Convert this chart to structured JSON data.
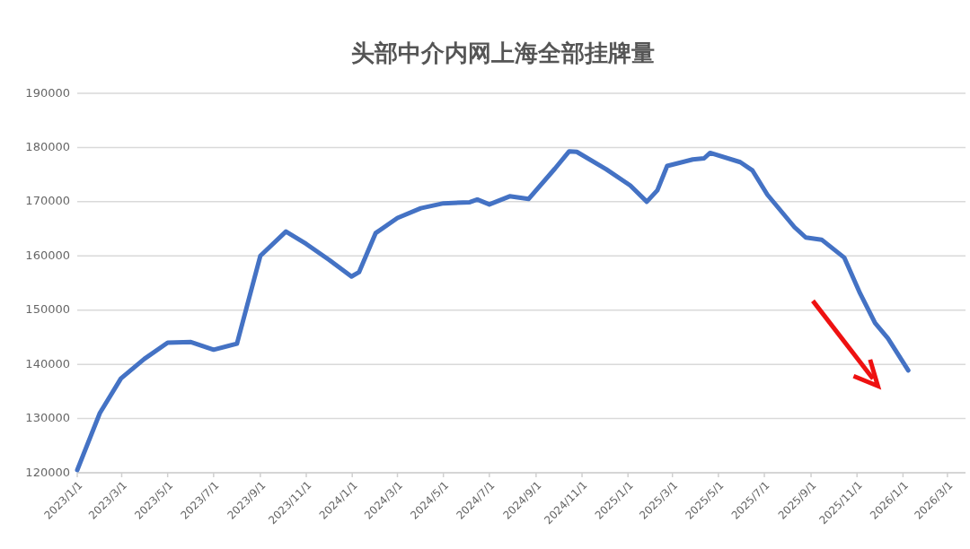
{
  "chart_data": {
    "type": "line",
    "title": "头部中介内网上海全部挂牌量",
    "x": [
      "2023-01-01",
      "2023-01-31",
      "2023-02-28",
      "2023-03-31",
      "2023-05-01",
      "2023-06-01",
      "2023-07-01",
      "2023-08-01",
      "2023-09-01",
      "2023-10-05",
      "2023-11-01",
      "2023-12-01",
      "2023-12-31",
      "2024-01-10",
      "2024-02-01",
      "2024-03-01",
      "2024-04-01",
      "2024-05-01",
      "2024-06-05",
      "2024-06-15",
      "2024-07-01",
      "2024-07-28",
      "2024-08-22",
      "2024-09-26",
      "2024-10-15",
      "2024-10-25",
      "2024-12-03",
      "2025-01-04",
      "2025-01-26",
      "2025-02-09",
      "2025-02-22",
      "2025-03-28",
      "2025-04-12",
      "2025-04-20",
      "2025-05-30",
      "2025-06-15",
      "2025-07-05",
      "2025-08-10",
      "2025-08-25",
      "2025-09-15",
      "2025-10-15",
      "2025-11-05",
      "2025-11-25",
      "2025-12-12",
      "2026-01-08"
    ],
    "series": [
      {
        "color": "#4472c4",
        "values": [
          120500,
          131000,
          137400,
          141000,
          144000,
          144100,
          142700,
          143800,
          160000,
          164500,
          162200,
          159300,
          156200,
          157000,
          164200,
          167000,
          168800,
          169700,
          169900,
          170400,
          169500,
          171000,
          170500,
          176100,
          179300,
          179200,
          176000,
          173000,
          170000,
          172100,
          176600,
          177800,
          178000,
          179000,
          177300,
          175800,
          171300,
          165300,
          163400,
          163000,
          159700,
          153100,
          147600,
          144800,
          138900
        ]
      }
    ],
    "xlim": [
      "2023-01-01",
      "2026-03-25"
    ],
    "xticks": [
      {
        "value": "2023-01-01",
        "label": "2023/1/1"
      },
      {
        "value": "2023-03-01",
        "label": "2023/3/1"
      },
      {
        "value": "2023-05-01",
        "label": "2023/5/1"
      },
      {
        "value": "2023-07-01",
        "label": "2023/7/1"
      },
      {
        "value": "2023-09-01",
        "label": "2023/9/1"
      },
      {
        "value": "2023-11-01",
        "label": "2023/11/1"
      },
      {
        "value": "2024-01-01",
        "label": "2024/1/1"
      },
      {
        "value": "2024-03-01",
        "label": "2024/3/1"
      },
      {
        "value": "2024-05-01",
        "label": "2024/5/1"
      },
      {
        "value": "2024-07-01",
        "label": "2024/7/1"
      },
      {
        "value": "2024-09-01",
        "label": "2024/9/1"
      },
      {
        "value": "2024-11-01",
        "label": "2024/11/1"
      },
      {
        "value": "2025-01-01",
        "label": "2025/1/1"
      },
      {
        "value": "2025-03-01",
        "label": "2025/3/1"
      },
      {
        "value": "2025-05-01",
        "label": "2025/5/1"
      },
      {
        "value": "2025-07-01",
        "label": "2025/7/1"
      },
      {
        "value": "2025-09-01",
        "label": "2025/9/1"
      },
      {
        "value": "2025-11-01",
        "label": "2025/11/1"
      },
      {
        "value": "2026-01-01",
        "label": "2026/1/1"
      },
      {
        "value": "2026-03-01",
        "label": "2026/3/1"
      }
    ],
    "ylim": [
      120000,
      190000
    ],
    "yticks": [
      120000,
      130000,
      140000,
      150000,
      160000,
      170000,
      180000,
      190000
    ],
    "grid": "y",
    "marker": "none",
    "line_style": "solid"
  }
}
